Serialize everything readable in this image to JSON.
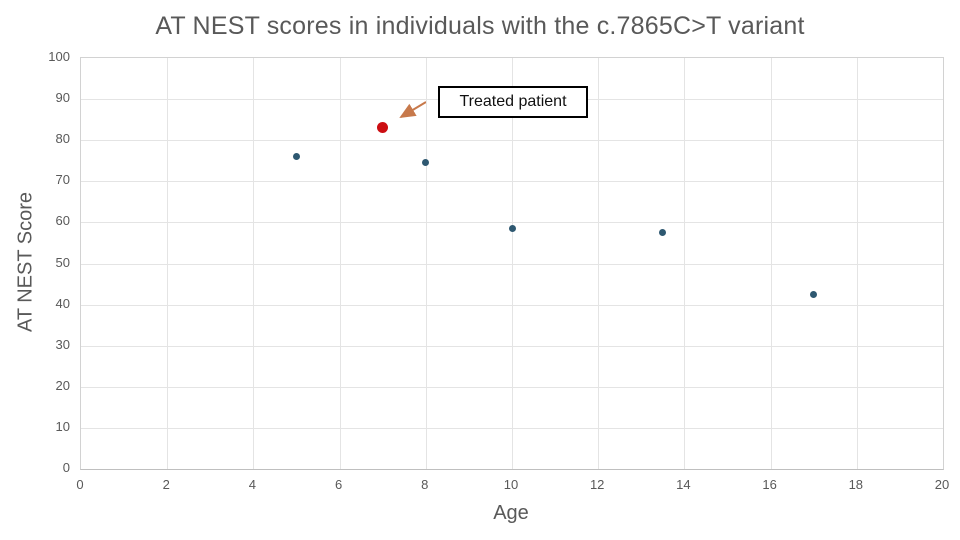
{
  "chart_data": {
    "type": "scatter",
    "title": "AT NEST scores in individuals with the c.7865C>T variant",
    "xlabel": "Age",
    "ylabel": "AT NEST Score",
    "xlim": [
      0,
      20
    ],
    "ylim": [
      0,
      100
    ],
    "x_ticks": [
      0,
      2,
      4,
      6,
      8,
      10,
      12,
      14,
      16,
      18,
      20
    ],
    "y_ticks": [
      0,
      10,
      20,
      30,
      40,
      50,
      60,
      70,
      80,
      90,
      100
    ],
    "grid": true,
    "legend": "none",
    "series": [
      {
        "color": "#2E5871",
        "marker_px": 7,
        "points": [
          [
            5,
            76
          ],
          [
            8,
            74.5
          ],
          [
            10,
            58.5
          ],
          [
            13.5,
            57.5
          ],
          [
            17,
            42.5
          ]
        ]
      },
      {
        "color": "#CC0E12",
        "marker_px": 11,
        "points": [
          [
            7,
            83
          ]
        ]
      }
    ],
    "annotation": {
      "label": "Treated patient",
      "target_point": [
        7,
        83
      ],
      "arrow_color": "#C7794B"
    }
  },
  "styles": {
    "text_color": "#595959",
    "grid_color": "#E4E4E4",
    "axis_line_color": "#BFBFBF",
    "background": "#FFFFFF"
  }
}
